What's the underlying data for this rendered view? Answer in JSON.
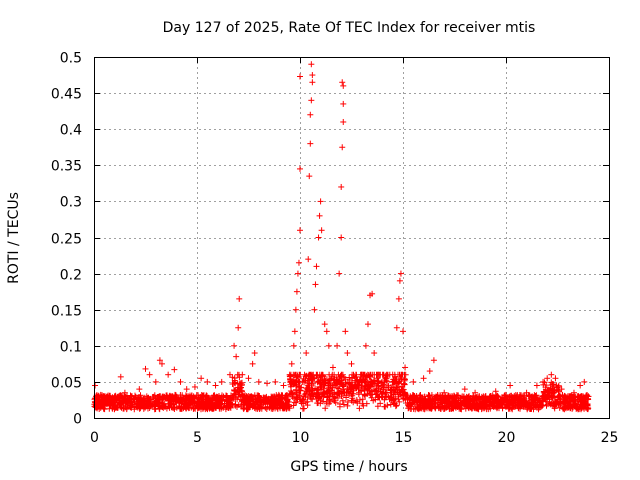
{
  "chart_data": {
    "type": "scatter",
    "title": "Day 127 of 2025, Rate Of TEC Index for receiver mtis",
    "xlabel": "GPS time / hours",
    "ylabel": "ROTI / TECUs",
    "xlim": [
      0,
      25
    ],
    "ylim": [
      0,
      0.5
    ],
    "xticks": [
      0,
      5,
      10,
      15,
      20,
      25
    ],
    "yticks": [
      0,
      0.05,
      0.1,
      0.15,
      0.2,
      0.25,
      0.3,
      0.35,
      0.4,
      0.45,
      0.5
    ],
    "xtick_labels": [
      "0",
      "5",
      "10",
      "15",
      "20",
      "25"
    ],
    "ytick_labels": [
      "0",
      "0.05",
      "0.1",
      "0.15",
      "0.2",
      "0.25",
      "0.3",
      "0.35",
      "0.4",
      "0.45",
      "0.5"
    ],
    "grid": true,
    "marker": "+",
    "color": "#ff0000",
    "series": [
      {
        "name": "ROTI",
        "points": [
          [
            0.05,
            0.045
          ],
          [
            0.1,
            0.03
          ],
          [
            0.2,
            0.025
          ],
          [
            0.3,
            0.02
          ],
          [
            0.5,
            0.03
          ],
          [
            0.7,
            0.028
          ],
          [
            1.0,
            0.03
          ],
          [
            1.3,
            0.057
          ],
          [
            1.5,
            0.035
          ],
          [
            1.8,
            0.03
          ],
          [
            2.2,
            0.04
          ],
          [
            2.5,
            0.068
          ],
          [
            2.7,
            0.06
          ],
          [
            3.0,
            0.05
          ],
          [
            3.2,
            0.08
          ],
          [
            3.3,
            0.075
          ],
          [
            3.6,
            0.06
          ],
          [
            3.9,
            0.067
          ],
          [
            4.2,
            0.05
          ],
          [
            4.5,
            0.04
          ],
          [
            4.9,
            0.043
          ],
          [
            5.2,
            0.055
          ],
          [
            5.5,
            0.05
          ],
          [
            5.9,
            0.045
          ],
          [
            6.2,
            0.05
          ],
          [
            6.6,
            0.06
          ],
          [
            6.8,
            0.1
          ],
          [
            6.9,
            0.085
          ],
          [
            7.0,
            0.125
          ],
          [
            7.05,
            0.165
          ],
          [
            7.2,
            0.06
          ],
          [
            7.5,
            0.055
          ],
          [
            7.7,
            0.075
          ],
          [
            7.8,
            0.09
          ],
          [
            8.0,
            0.05
          ],
          [
            8.4,
            0.048
          ],
          [
            8.8,
            0.05
          ],
          [
            9.2,
            0.045
          ],
          [
            9.5,
            0.06
          ],
          [
            9.6,
            0.075
          ],
          [
            9.7,
            0.1
          ],
          [
            9.75,
            0.12
          ],
          [
            9.8,
            0.15
          ],
          [
            9.85,
            0.175
          ],
          [
            9.9,
            0.2
          ],
          [
            9.95,
            0.215
          ],
          [
            10.0,
            0.26
          ],
          [
            10.0,
            0.345
          ],
          [
            10.0,
            0.473
          ],
          [
            10.3,
            0.09
          ],
          [
            10.4,
            0.22
          ],
          [
            10.45,
            0.335
          ],
          [
            10.5,
            0.38
          ],
          [
            10.5,
            0.42
          ],
          [
            10.55,
            0.44
          ],
          [
            10.55,
            0.49
          ],
          [
            10.6,
            0.475
          ],
          [
            10.6,
            0.465
          ],
          [
            10.7,
            0.15
          ],
          [
            10.75,
            0.185
          ],
          [
            10.8,
            0.21
          ],
          [
            10.9,
            0.25
          ],
          [
            10.95,
            0.28
          ],
          [
            11.0,
            0.3
          ],
          [
            11.05,
            0.26
          ],
          [
            11.2,
            0.13
          ],
          [
            11.3,
            0.12
          ],
          [
            11.4,
            0.1
          ],
          [
            11.6,
            0.07
          ],
          [
            11.8,
            0.1
          ],
          [
            11.9,
            0.2
          ],
          [
            12.0,
            0.25
          ],
          [
            12.0,
            0.32
          ],
          [
            12.05,
            0.375
          ],
          [
            12.1,
            0.41
          ],
          [
            12.1,
            0.435
          ],
          [
            12.1,
            0.46
          ],
          [
            12.05,
            0.465
          ],
          [
            12.2,
            0.12
          ],
          [
            12.3,
            0.09
          ],
          [
            12.5,
            0.075
          ],
          [
            12.8,
            0.05
          ],
          [
            13.0,
            0.06
          ],
          [
            13.2,
            0.1
          ],
          [
            13.3,
            0.13
          ],
          [
            13.4,
            0.17
          ],
          [
            13.5,
            0.172
          ],
          [
            13.6,
            0.09
          ],
          [
            13.8,
            0.06
          ],
          [
            14.2,
            0.055
          ],
          [
            14.5,
            0.06
          ],
          [
            14.7,
            0.125
          ],
          [
            14.8,
            0.165
          ],
          [
            14.85,
            0.19
          ],
          [
            14.9,
            0.2
          ],
          [
            15.0,
            0.12
          ],
          [
            15.1,
            0.07
          ],
          [
            15.5,
            0.05
          ],
          [
            16.0,
            0.055
          ],
          [
            16.3,
            0.065
          ],
          [
            16.5,
            0.08
          ],
          [
            17.0,
            0.035
          ],
          [
            17.5,
            0.03
          ],
          [
            18.0,
            0.04
          ],
          [
            18.5,
            0.035
          ],
          [
            19.0,
            0.03
          ],
          [
            19.5,
            0.037
          ],
          [
            20.0,
            0.032
          ],
          [
            20.2,
            0.045
          ],
          [
            20.5,
            0.03
          ],
          [
            21.0,
            0.035
          ],
          [
            21.5,
            0.045
          ],
          [
            21.8,
            0.05
          ],
          [
            22.0,
            0.055
          ],
          [
            22.2,
            0.06
          ],
          [
            22.4,
            0.055
          ],
          [
            22.7,
            0.04
          ],
          [
            23.0,
            0.03
          ],
          [
            23.3,
            0.035
          ],
          [
            23.6,
            0.045
          ],
          [
            23.8,
            0.05
          ],
          [
            24.0,
            0.03
          ]
        ]
      }
    ]
  }
}
